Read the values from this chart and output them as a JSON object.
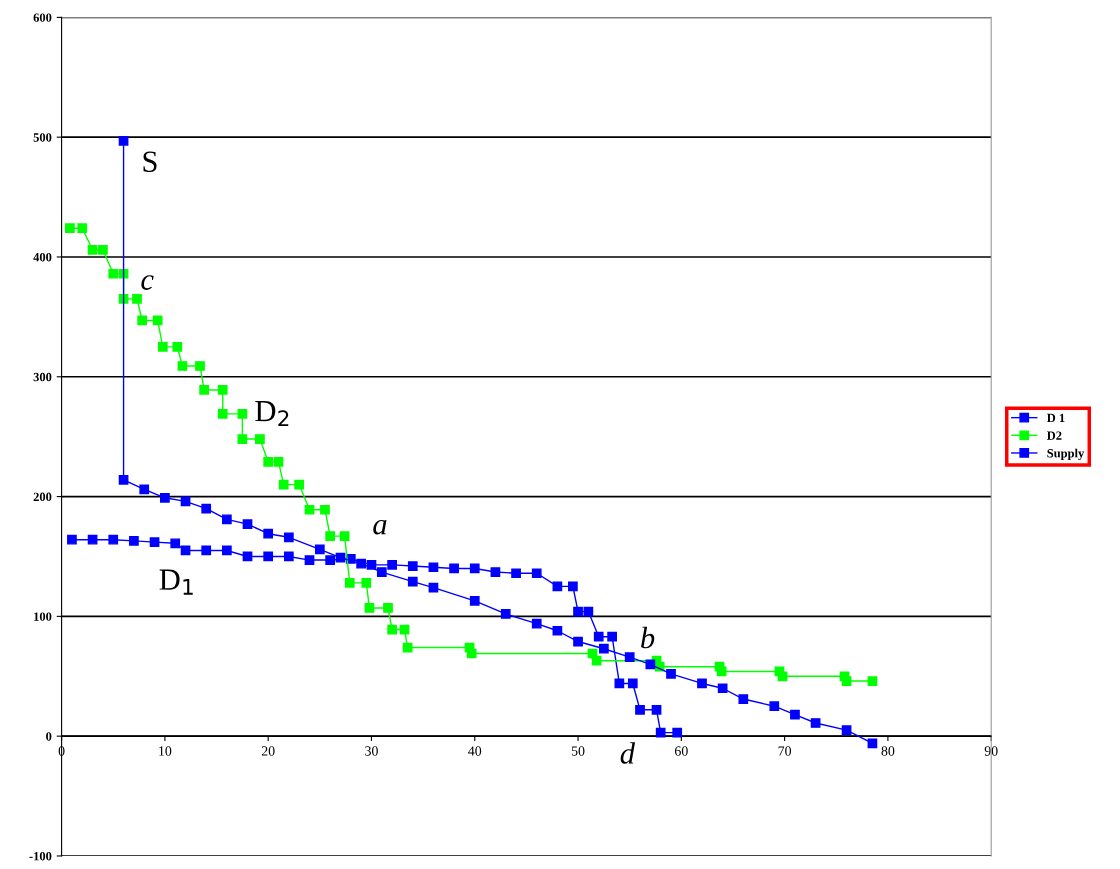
{
  "chart_data": {
    "type": "line",
    "xlim": [
      0,
      90
    ],
    "xticks": [
      0,
      10,
      20,
      30,
      40,
      50,
      60,
      70,
      80,
      90
    ],
    "ylim": [
      -100,
      600
    ],
    "yticks": [
      -100,
      0,
      100,
      200,
      300,
      400,
      500,
      600
    ],
    "grid": "y",
    "legend": "right",
    "marker": "square",
    "series": [
      {
        "name": "D 1",
        "color": "#0000ff",
        "x": [
          1,
          3,
          5,
          7,
          9,
          11,
          12,
          14,
          16,
          18,
          20,
          22,
          24,
          26,
          28,
          30,
          32,
          34,
          36,
          38,
          40,
          42,
          44,
          46,
          48,
          49.5,
          50,
          51,
          52,
          53.3,
          54,
          55.3,
          56,
          57.6,
          58,
          59.6
        ],
        "values": [
          164,
          164,
          164,
          163,
          162,
          161,
          155,
          155,
          155,
          150,
          150,
          150,
          147,
          147,
          148,
          143,
          143,
          142,
          141,
          140,
          140,
          137,
          136,
          136,
          125,
          125,
          104,
          104,
          83,
          83,
          44,
          44,
          22,
          22,
          3,
          3
        ]
      },
      {
        "name": "D2",
        "color": "#00ff00",
        "x": [
          0.8,
          2,
          3,
          4,
          5,
          6,
          6,
          7.3,
          7.8,
          9.3,
          9.8,
          11.2,
          11.7,
          13.4,
          13.8,
          15.6,
          15.6,
          17.5,
          17.5,
          19.2,
          20,
          21,
          21.5,
          23,
          24,
          25.5,
          26,
          27.4,
          27.9,
          29.5,
          29.8,
          31.6,
          32,
          33.2,
          33.5,
          39.5,
          39.7,
          51.4,
          51.8,
          57.6,
          57.9,
          63.7,
          63.9,
          69.5,
          69.8,
          75.8,
          76,
          78.5
        ],
        "values": [
          424,
          424,
          406,
          406,
          386,
          386,
          365,
          365,
          347,
          347,
          325,
          325,
          309,
          309,
          289,
          289,
          269,
          269,
          248,
          248,
          229,
          229,
          210,
          210,
          189,
          189,
          167,
          167,
          128,
          128,
          107,
          107,
          89,
          89,
          74,
          74,
          69,
          69,
          63,
          63,
          58,
          58,
          54,
          54,
          50,
          50,
          46,
          46
        ]
      },
      {
        "name": "Supply",
        "color": "#0000ff",
        "x": [
          6,
          6,
          8,
          10,
          12,
          14,
          16,
          18,
          20,
          22,
          25,
          27,
          29,
          31,
          34,
          36,
          40,
          43,
          46,
          48,
          50,
          52.5,
          55,
          57,
          59,
          62,
          64,
          66,
          69,
          71,
          73,
          76,
          78.5
        ],
        "values": [
          497,
          214,
          206,
          199,
          196,
          190,
          181,
          177,
          169,
          166,
          156,
          149,
          144,
          137,
          129,
          124,
          113,
          102,
          94,
          88,
          79,
          73,
          66,
          60,
          52,
          44,
          40,
          31,
          25,
          18,
          11,
          5,
          -6
        ]
      }
    ],
    "annotations": [
      {
        "text": "S",
        "x": 6,
        "y": 497
      },
      {
        "text": "c",
        "x": 6,
        "y": 365
      },
      {
        "text": "D$_{2}$",
        "x": 17.5,
        "y": 269
      },
      {
        "text": "a",
        "x": 28,
        "y": 148
      },
      {
        "text": "D$_{1}$",
        "x": 12,
        "y": 155
      },
      {
        "text": "b",
        "x": 57,
        "y": 60
      },
      {
        "text": "d",
        "x": 58,
        "y": 3
      }
    ]
  }
}
